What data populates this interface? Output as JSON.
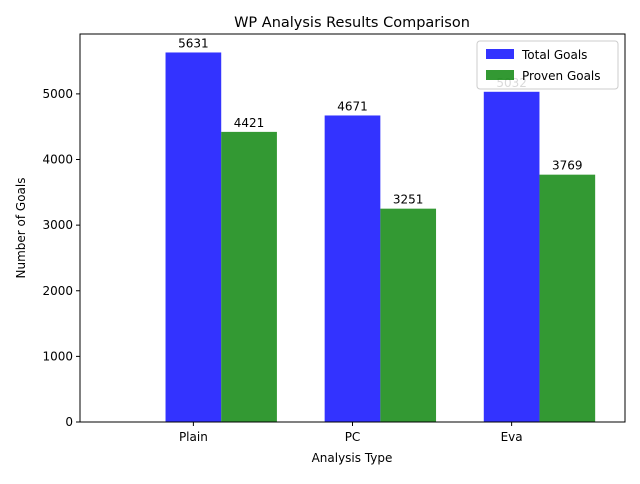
{
  "chart_data": {
    "type": "bar",
    "title": "WP Analysis Results Comparison",
    "xlabel": "Analysis Type",
    "ylabel": "Number of Goals",
    "categories": [
      "Plain",
      "PC",
      "Eva"
    ],
    "series": [
      {
        "name": "Total Goals",
        "values": [
          5631,
          4671,
          5032
        ],
        "color": "#0000ff",
        "labels": [
          "5631",
          "4671",
          "5032"
        ]
      },
      {
        "name": "Proven Goals",
        "values": [
          4421,
          3251,
          3769
        ],
        "color": "#008000",
        "labels": [
          "4421",
          "3251",
          "3769"
        ]
      }
    ],
    "ylim": [
      0,
      5912.55
    ],
    "yticks": [
      0,
      1000,
      2000,
      3000,
      4000,
      5000
    ],
    "ytick_labels": [
      "0",
      "1000",
      "2000",
      "3000",
      "4000",
      "5000"
    ],
    "grid": false,
    "legend_position": "top-right"
  }
}
